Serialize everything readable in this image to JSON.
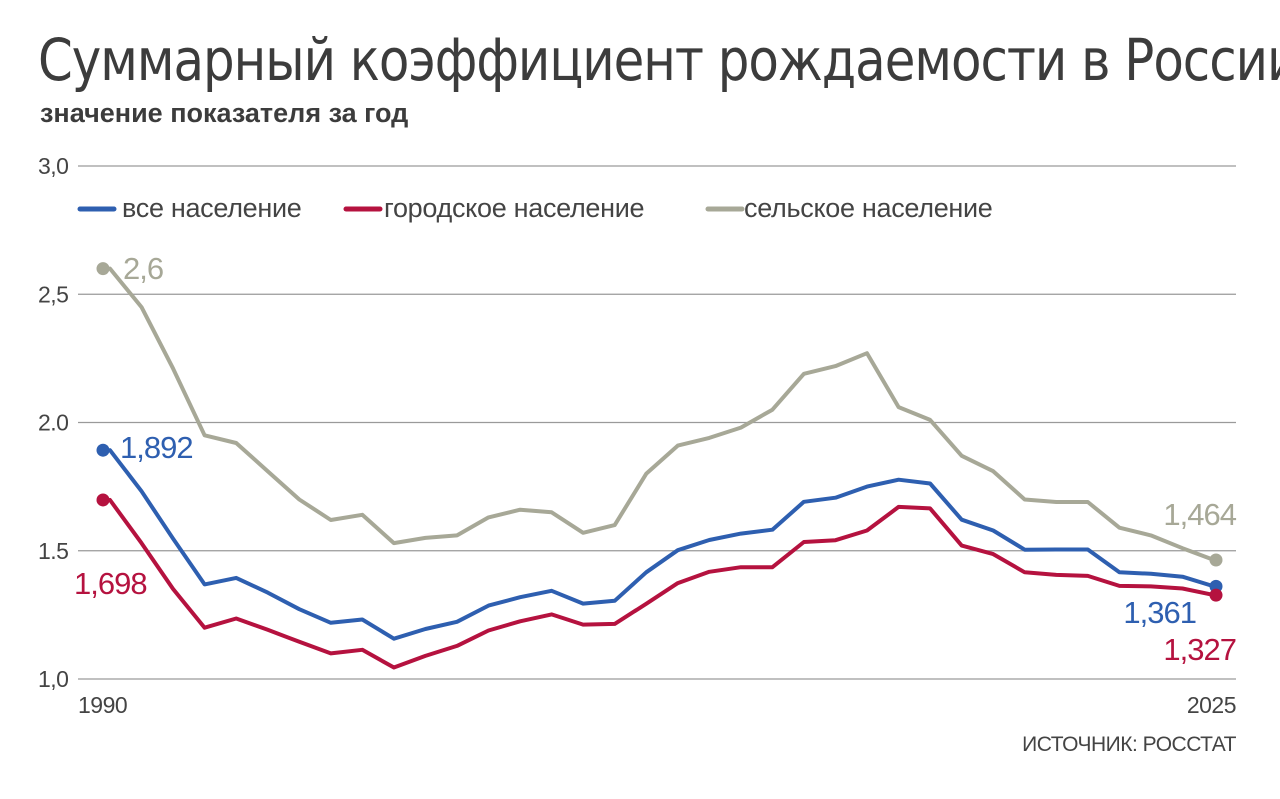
{
  "chart_data": {
    "type": "line",
    "title": "Суммарный коэффициент рождаемости в России",
    "subtitle": "значение показателя за год",
    "source": "ИСТОЧНИК: РОССТАТ",
    "ylim": [
      1.0,
      3.0
    ],
    "y_ticks": [
      "1,0",
      "1.5",
      "2.0",
      "2,5",
      "3,0"
    ],
    "x_tick_labels": [
      "1990",
      "2025"
    ],
    "grid": true,
    "legend_placement": "top",
    "x": [
      1990,
      1991,
      1992,
      1993,
      1994,
      1995,
      1996,
      1997,
      1998,
      1999,
      2000,
      2001,
      2002,
      2003,
      2004,
      2005,
      2006,
      2007,
      2008,
      2009,
      2010,
      2011,
      2012,
      2013,
      2014,
      2015,
      2016,
      2017,
      2018,
      2019,
      2020,
      2021,
      2022,
      2023,
      2024,
      2025
    ],
    "series": [
      {
        "name": "все население",
        "color": "#2e5fb0",
        "values": [
          1.892,
          1.732,
          1.547,
          1.369,
          1.394,
          1.337,
          1.272,
          1.219,
          1.232,
          1.157,
          1.195,
          1.223,
          1.286,
          1.319,
          1.344,
          1.294,
          1.305,
          1.416,
          1.502,
          1.542,
          1.567,
          1.582,
          1.691,
          1.707,
          1.75,
          1.777,
          1.762,
          1.621,
          1.579,
          1.504,
          1.505,
          1.505,
          1.416,
          1.41,
          1.399,
          1.361
        ],
        "end_label": "1,892",
        "last_label": "1,361"
      },
      {
        "name": "городское население",
        "color": "#b5123f",
        "values": [
          1.698,
          1.53,
          1.351,
          1.2,
          1.236,
          1.192,
          1.145,
          1.1,
          1.114,
          1.045,
          1.09,
          1.129,
          1.189,
          1.225,
          1.252,
          1.212,
          1.215,
          1.293,
          1.374,
          1.418,
          1.436,
          1.436,
          1.534,
          1.541,
          1.579,
          1.671,
          1.665,
          1.52,
          1.487,
          1.416,
          1.406,
          1.402,
          1.363,
          1.361,
          1.353,
          1.327
        ],
        "end_label": "1,698",
        "last_label": "1,327"
      },
      {
        "name": "сельское население",
        "color": "#a7a897",
        "values": [
          2.6,
          2.45,
          2.21,
          1.95,
          1.92,
          1.81,
          1.7,
          1.62,
          1.64,
          1.53,
          1.55,
          1.56,
          1.63,
          1.66,
          1.65,
          1.57,
          1.6,
          1.8,
          1.91,
          1.94,
          1.98,
          2.05,
          2.19,
          2.22,
          2.27,
          2.06,
          2.01,
          1.87,
          1.81,
          1.7,
          1.69,
          1.69,
          1.59,
          1.56,
          1.51,
          1.464
        ],
        "end_label": "2,6",
        "last_label": "1,464"
      }
    ]
  }
}
